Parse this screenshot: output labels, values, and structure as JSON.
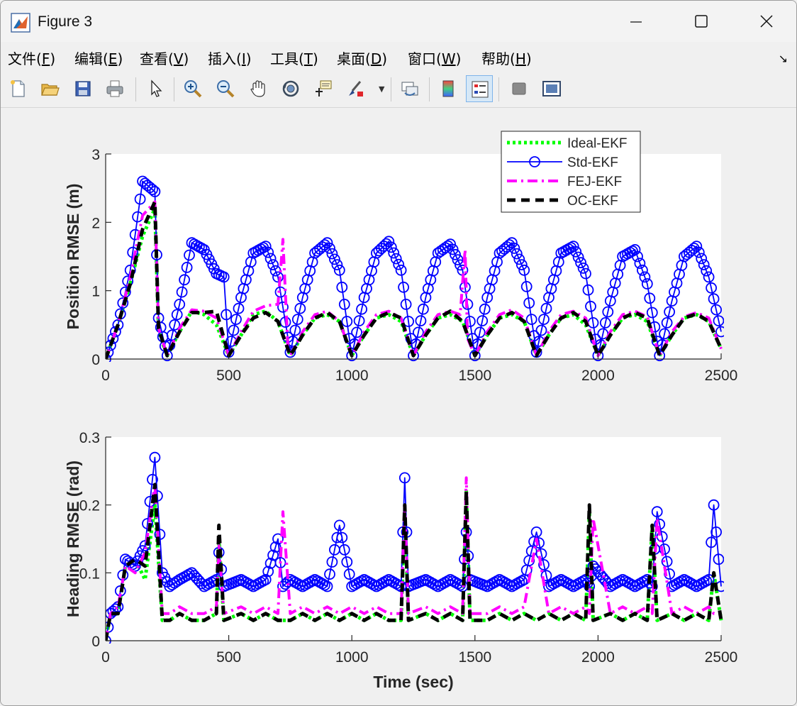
{
  "window": {
    "title": "Figure 3",
    "controls": {
      "minimize": "minimize",
      "maximize": "maximize",
      "close": "close"
    }
  },
  "menu": {
    "items": [
      {
        "label": "文件(",
        "key": "F",
        "tail": ")"
      },
      {
        "label": "编辑(",
        "key": "E",
        "tail": ")"
      },
      {
        "label": "查看(",
        "key": "V",
        "tail": ")"
      },
      {
        "label": "插入(",
        "key": "I",
        "tail": ")"
      },
      {
        "label": "工具(",
        "key": "T",
        "tail": ")"
      },
      {
        "label": "桌面(",
        "key": "D",
        "tail": ")"
      },
      {
        "label": "窗口(",
        "key": "W",
        "tail": ")"
      },
      {
        "label": "帮助(",
        "key": "H",
        "tail": ")"
      }
    ],
    "dock_icon": "dock-arrow-icon"
  },
  "toolbar": {
    "buttons": [
      "new-figure-icon",
      "open-file-icon",
      "save-icon",
      "print-icon",
      "pointer-icon",
      "zoom-in-icon",
      "zoom-out-icon",
      "pan-hand-icon",
      "rotate-3d-icon",
      "data-cursor-icon",
      "brush-icon",
      "link-plot-icon",
      "colorbar-icon",
      "legend-icon",
      "hide-plot-tools-icon",
      "show-plot-tools-icon"
    ],
    "active": "legend-icon"
  },
  "colors": {
    "ideal": "#00ff00",
    "std": "#0000ff",
    "fej": "#ff00ff",
    "oc": "#000000"
  },
  "chart_data": [
    {
      "type": "line",
      "ylabel": "Position RMSE (m)",
      "xlabel": "",
      "xlim": [
        0,
        2500
      ],
      "ylim": [
        0,
        3
      ],
      "xticks": [
        "0",
        "500",
        "1000",
        "1500",
        "2000",
        "2500"
      ],
      "yticks": [
        "0",
        "1",
        "2",
        "3"
      ],
      "legend": {
        "placement": "top-right",
        "entries": [
          "Ideal-EKF",
          "Std-EKF",
          "FEJ-EKF",
          "OC-EKF"
        ]
      },
      "series": [
        {
          "name": "Ideal-EKF",
          "x": [
            0,
            50,
            100,
            150,
            200,
            215,
            250,
            300,
            350,
            400,
            450,
            500,
            550,
            600,
            650,
            700,
            750,
            800,
            850,
            900,
            950,
            1000,
            1050,
            1100,
            1150,
            1200,
            1250,
            1300,
            1350,
            1400,
            1450,
            1500,
            1550,
            1600,
            1650,
            1700,
            1750,
            1800,
            1850,
            1900,
            1950,
            2000,
            2050,
            2100,
            2150,
            2200,
            2250,
            2300,
            2350,
            2400,
            2450,
            2500
          ],
          "y": [
            0,
            0.5,
            1.1,
            1.8,
            2.2,
            0.4,
            0.05,
            0.4,
            0.7,
            0.65,
            0.5,
            0.05,
            0.35,
            0.65,
            0.7,
            0.55,
            0.05,
            0.35,
            0.6,
            0.65,
            0.55,
            0.05,
            0.35,
            0.6,
            0.65,
            0.55,
            0.05,
            0.35,
            0.6,
            0.65,
            0.55,
            0.05,
            0.35,
            0.6,
            0.65,
            0.55,
            0.05,
            0.35,
            0.6,
            0.65,
            0.5,
            0.05,
            0.35,
            0.6,
            0.65,
            0.55,
            0.05,
            0.35,
            0.6,
            0.65,
            0.55,
            0.15
          ]
        },
        {
          "name": "Std-EKF",
          "x": [
            0,
            50,
            100,
            150,
            200,
            215,
            250,
            300,
            350,
            400,
            450,
            480,
            500,
            550,
            600,
            650,
            700,
            750,
            800,
            850,
            900,
            950,
            1000,
            1050,
            1100,
            1150,
            1200,
            1250,
            1300,
            1350,
            1400,
            1450,
            1500,
            1550,
            1600,
            1650,
            1700,
            1750,
            1800,
            1850,
            1900,
            1950,
            2000,
            2050,
            2100,
            2150,
            2200,
            2250,
            2300,
            2350,
            2400,
            2450,
            2500
          ],
          "y": [
            0,
            0.5,
            1.3,
            2.6,
            2.45,
            0.6,
            0.05,
            0.8,
            1.7,
            1.6,
            1.25,
            1.2,
            0.1,
            0.9,
            1.55,
            1.65,
            1.2,
            0.1,
            0.9,
            1.55,
            1.7,
            1.3,
            0.05,
            0.9,
            1.55,
            1.72,
            1.3,
            0.05,
            0.9,
            1.55,
            1.68,
            1.3,
            0.05,
            0.9,
            1.55,
            1.7,
            1.3,
            0.1,
            0.9,
            1.55,
            1.65,
            1.25,
            0.05,
            0.85,
            1.5,
            1.6,
            1.1,
            0.05,
            0.85,
            1.5,
            1.65,
            1.2,
            0.4
          ]
        },
        {
          "name": "FEJ-EKF",
          "x": [
            0,
            50,
            100,
            150,
            200,
            215,
            250,
            300,
            350,
            400,
            450,
            500,
            550,
            600,
            650,
            700,
            720,
            740,
            750,
            800,
            850,
            900,
            950,
            1000,
            1050,
            1100,
            1150,
            1200,
            1250,
            1300,
            1350,
            1400,
            1440,
            1460,
            1470,
            1500,
            1550,
            1600,
            1650,
            1700,
            1750,
            1800,
            1850,
            1900,
            1950,
            2000,
            2050,
            2100,
            2150,
            2200,
            2250,
            2300,
            2350,
            2400,
            2450,
            2500
          ],
          "y": [
            0,
            0.5,
            1.2,
            2.1,
            2.3,
            0.45,
            0.05,
            0.45,
            0.72,
            0.7,
            0.6,
            0.05,
            0.4,
            0.7,
            0.78,
            0.8,
            1.75,
            0.2,
            0.05,
            0.4,
            0.65,
            0.7,
            0.55,
            0.05,
            0.4,
            0.65,
            0.7,
            0.6,
            0.05,
            0.4,
            0.65,
            0.7,
            0.65,
            1.6,
            0.3,
            0.05,
            0.4,
            0.65,
            0.72,
            0.6,
            0.05,
            0.4,
            0.65,
            0.7,
            0.6,
            0.05,
            0.4,
            0.65,
            0.7,
            0.62,
            0.05,
            0.4,
            0.62,
            0.68,
            0.6,
            0.15
          ]
        },
        {
          "name": "OC-EKF",
          "x": [
            0,
            50,
            100,
            150,
            200,
            215,
            250,
            300,
            350,
            400,
            450,
            500,
            550,
            600,
            650,
            700,
            750,
            800,
            850,
            900,
            950,
            1000,
            1050,
            1100,
            1150,
            1200,
            1250,
            1300,
            1350,
            1400,
            1450,
            1500,
            1550,
            1600,
            1650,
            1700,
            1750,
            1800,
            1850,
            1900,
            1950,
            2000,
            2050,
            2100,
            2150,
            2200,
            2250,
            2300,
            2350,
            2400,
            2450,
            2500
          ],
          "y": [
            0,
            0.5,
            1.1,
            1.9,
            2.3,
            0.45,
            0.05,
            0.4,
            0.68,
            0.68,
            0.7,
            0.05,
            0.35,
            0.6,
            0.68,
            0.55,
            0.05,
            0.35,
            0.6,
            0.68,
            0.55,
            0.05,
            0.35,
            0.6,
            0.68,
            0.6,
            0.05,
            0.35,
            0.6,
            0.7,
            0.55,
            0.05,
            0.35,
            0.6,
            0.68,
            0.55,
            0.05,
            0.35,
            0.6,
            0.68,
            0.55,
            0.05,
            0.35,
            0.6,
            0.68,
            0.6,
            0.05,
            0.35,
            0.6,
            0.66,
            0.55,
            0.15
          ]
        }
      ]
    },
    {
      "type": "line",
      "ylabel": "Heading RMSE (rad)",
      "xlabel": "Time (sec)",
      "xlim": [
        0,
        2500
      ],
      "ylim": [
        0,
        0.3
      ],
      "xticks": [
        "0",
        "500",
        "1000",
        "1500",
        "2000",
        "2500"
      ],
      "yticks": [
        "0",
        "0.1",
        "0.2",
        "0.3"
      ],
      "series": [
        {
          "name": "Ideal-EKF",
          "x": [
            0,
            20,
            50,
            80,
            120,
            160,
            200,
            230,
            260,
            300,
            350,
            400,
            450,
            460,
            480,
            550,
            600,
            650,
            700,
            750,
            800,
            850,
            900,
            950,
            1000,
            1050,
            1100,
            1150,
            1200,
            1215,
            1230,
            1300,
            1350,
            1400,
            1450,
            1465,
            1480,
            1550,
            1600,
            1650,
            1700,
            1750,
            1800,
            1850,
            1900,
            1950,
            1965,
            1980,
            2050,
            2100,
            2150,
            2200,
            2220,
            2240,
            2300,
            2350,
            2400,
            2450,
            2470,
            2500
          ],
          "y": [
            0,
            0.04,
            0.04,
            0.11,
            0.12,
            0.09,
            0.2,
            0.03,
            0.03,
            0.04,
            0.03,
            0.03,
            0.04,
            0.15,
            0.03,
            0.04,
            0.03,
            0.04,
            0.03,
            0.03,
            0.04,
            0.03,
            0.04,
            0.03,
            0.04,
            0.03,
            0.04,
            0.03,
            0.03,
            0.19,
            0.03,
            0.04,
            0.03,
            0.04,
            0.03,
            0.22,
            0.03,
            0.03,
            0.04,
            0.03,
            0.04,
            0.03,
            0.04,
            0.03,
            0.04,
            0.03,
            0.19,
            0.03,
            0.04,
            0.03,
            0.04,
            0.03,
            0.17,
            0.03,
            0.04,
            0.03,
            0.04,
            0.03,
            0.1,
            0.03
          ]
        },
        {
          "name": "Std-EKF",
          "x": [
            0,
            20,
            50,
            80,
            120,
            160,
            200,
            230,
            260,
            300,
            350,
            400,
            450,
            460,
            480,
            550,
            600,
            650,
            700,
            720,
            750,
            800,
            850,
            900,
            950,
            1000,
            1050,
            1100,
            1150,
            1200,
            1215,
            1230,
            1300,
            1350,
            1400,
            1450,
            1465,
            1480,
            1550,
            1600,
            1650,
            1700,
            1750,
            1800,
            1850,
            1900,
            1950,
            1965,
            1980,
            2050,
            2100,
            2150,
            2200,
            2220,
            2240,
            2300,
            2350,
            2400,
            2450,
            2470,
            2500
          ],
          "y": [
            0,
            0.04,
            0.05,
            0.12,
            0.11,
            0.14,
            0.27,
            0.1,
            0.08,
            0.09,
            0.1,
            0.08,
            0.09,
            0.13,
            0.08,
            0.09,
            0.08,
            0.09,
            0.15,
            0.08,
            0.09,
            0.08,
            0.09,
            0.08,
            0.17,
            0.08,
            0.09,
            0.08,
            0.09,
            0.08,
            0.24,
            0.08,
            0.09,
            0.08,
            0.09,
            0.08,
            0.16,
            0.09,
            0.08,
            0.09,
            0.08,
            0.09,
            0.16,
            0.08,
            0.09,
            0.08,
            0.09,
            0.08,
            0.11,
            0.08,
            0.09,
            0.08,
            0.09,
            0.08,
            0.19,
            0.08,
            0.09,
            0.08,
            0.09,
            0.2,
            0.08
          ]
        },
        {
          "name": "FEJ-EKF",
          "x": [
            0,
            20,
            50,
            80,
            120,
            160,
            200,
            230,
            260,
            300,
            350,
            400,
            450,
            460,
            480,
            550,
            600,
            650,
            700,
            720,
            750,
            800,
            850,
            900,
            950,
            1000,
            1050,
            1100,
            1150,
            1200,
            1215,
            1230,
            1300,
            1350,
            1400,
            1450,
            1465,
            1480,
            1550,
            1600,
            1650,
            1700,
            1750,
            1800,
            1850,
            1900,
            1950,
            1965,
            1980,
            2050,
            2100,
            2150,
            2200,
            2220,
            2240,
            2300,
            2350,
            2400,
            2450,
            2470,
            2500
          ],
          "y": [
            0,
            0.04,
            0.05,
            0.11,
            0.1,
            0.13,
            0.23,
            0.04,
            0.04,
            0.05,
            0.04,
            0.04,
            0.05,
            0.14,
            0.04,
            0.05,
            0.04,
            0.05,
            0.04,
            0.19,
            0.04,
            0.05,
            0.04,
            0.05,
            0.04,
            0.05,
            0.04,
            0.05,
            0.04,
            0.04,
            0.2,
            0.04,
            0.05,
            0.04,
            0.05,
            0.04,
            0.24,
            0.04,
            0.04,
            0.05,
            0.04,
            0.05,
            0.15,
            0.04,
            0.05,
            0.04,
            0.05,
            0.04,
            0.18,
            0.04,
            0.05,
            0.04,
            0.05,
            0.04,
            0.18,
            0.04,
            0.05,
            0.04,
            0.05,
            0.04,
            0.04
          ]
        },
        {
          "name": "OC-EKF",
          "x": [
            0,
            20,
            50,
            80,
            120,
            160,
            200,
            230,
            260,
            300,
            350,
            400,
            450,
            460,
            480,
            550,
            600,
            650,
            700,
            750,
            800,
            850,
            900,
            950,
            1000,
            1050,
            1100,
            1150,
            1200,
            1215,
            1230,
            1300,
            1350,
            1400,
            1450,
            1465,
            1480,
            1550,
            1600,
            1650,
            1700,
            1750,
            1800,
            1850,
            1900,
            1950,
            1965,
            1980,
            2050,
            2100,
            2150,
            2200,
            2220,
            2240,
            2300,
            2350,
            2400,
            2450,
            2470,
            2500
          ],
          "y": [
            0,
            0.04,
            0.04,
            0.11,
            0.12,
            0.11,
            0.23,
            0.03,
            0.03,
            0.04,
            0.03,
            0.03,
            0.04,
            0.17,
            0.03,
            0.04,
            0.03,
            0.04,
            0.03,
            0.03,
            0.04,
            0.03,
            0.04,
            0.03,
            0.04,
            0.03,
            0.04,
            0.03,
            0.03,
            0.2,
            0.03,
            0.04,
            0.03,
            0.04,
            0.03,
            0.22,
            0.03,
            0.03,
            0.04,
            0.03,
            0.04,
            0.03,
            0.04,
            0.03,
            0.04,
            0.03,
            0.2,
            0.03,
            0.04,
            0.03,
            0.04,
            0.03,
            0.17,
            0.03,
            0.04,
            0.03,
            0.04,
            0.03,
            0.1,
            0.03
          ]
        }
      ]
    }
  ]
}
